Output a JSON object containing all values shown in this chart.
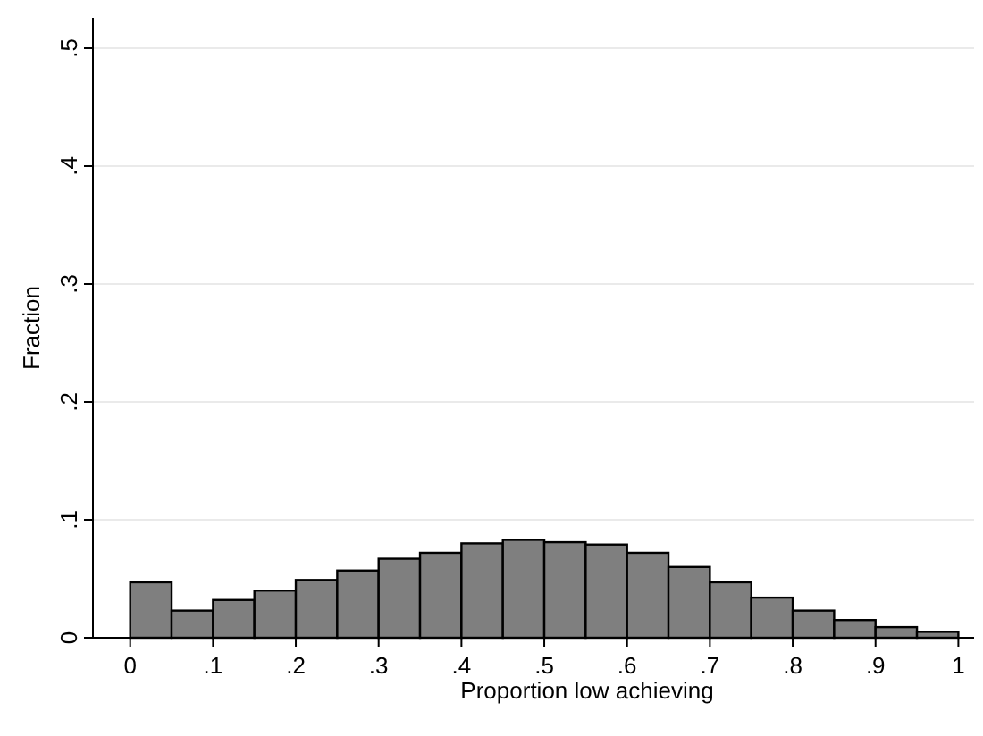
{
  "chart_data": {
    "type": "histogram",
    "xlabel": "Proportion low achieving",
    "ylabel": "Fraction",
    "bins": [
      0,
      0.05,
      0.1,
      0.15,
      0.2,
      0.25,
      0.3,
      0.35,
      0.4,
      0.45,
      0.5,
      0.55,
      0.6,
      0.65,
      0.7,
      0.75,
      0.8,
      0.85,
      0.9,
      0.95,
      1
    ],
    "values": [
      0.047,
      0.023,
      0.032,
      0.04,
      0.049,
      0.057,
      0.067,
      0.072,
      0.08,
      0.083,
      0.081,
      0.079,
      0.072,
      0.06,
      0.047,
      0.034,
      0.023,
      0.015,
      0.009,
      0.005
    ],
    "color": "#7f7f7f",
    "xlim": [
      -0.045,
      1.019
    ],
    "ylim": [
      0,
      0.5
    ],
    "xticks": [
      0,
      {
        "value": 0.1,
        "label": ".1"
      },
      {
        "value": 0.2,
        "label": ".2"
      },
      {
        "value": 0.3,
        "label": ".3"
      },
      {
        "value": 0.4,
        "label": ".4"
      },
      {
        "value": 0.5,
        "label": ".5"
      },
      {
        "value": 0.6,
        "label": ".6"
      },
      {
        "value": 0.7,
        "label": ".7"
      },
      {
        "value": 0.8,
        "label": ".8"
      },
      {
        "value": 0.9,
        "label": ".9"
      },
      1
    ],
    "yticks": [
      0,
      {
        "value": 0.1,
        "label": ".1"
      },
      {
        "value": 0.2,
        "label": ".2"
      },
      {
        "value": 0.3,
        "label": ".3"
      },
      {
        "value": 0.4,
        "label": ".4"
      },
      {
        "value": 0.5,
        "label": ".5"
      }
    ],
    "grid": "y"
  }
}
